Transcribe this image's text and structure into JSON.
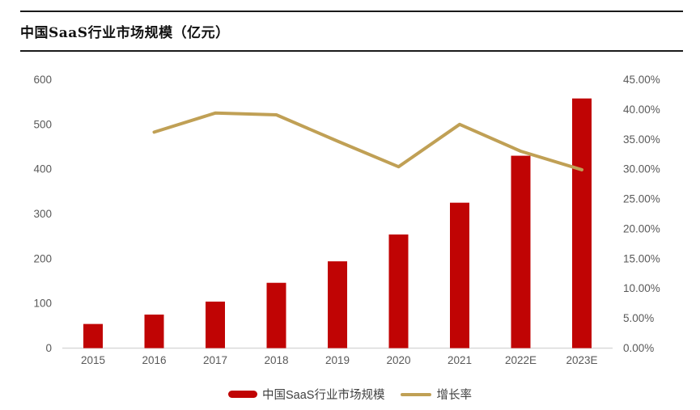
{
  "header": {
    "title": "中国SaaS行业市场规模（亿元）"
  },
  "legend": {
    "series1": "中国SaaS行业市场规模",
    "series2": "增长率"
  },
  "colors": {
    "bar": "#C00404",
    "line": "#C0A055",
    "axis_text": "#595959",
    "axis_line": "#D9D9D9",
    "rule": "#1A1A1A",
    "title_text": "#111111",
    "legend_text": "#3F3F3F"
  },
  "chart_data": {
    "type": "bar+line combo",
    "title": "中国SaaS行业市场规模（亿元）",
    "categories": [
      "2015",
      "2016",
      "2017",
      "2018",
      "2019",
      "2020",
      "2021",
      "2022E",
      "2023E"
    ],
    "series": [
      {
        "name": "中国SaaS行业市场规模",
        "type": "bar",
        "axis": "left",
        "values": [
          54,
          75,
          104,
          146,
          194,
          254,
          325,
          430,
          558
        ]
      },
      {
        "name": "增长率",
        "type": "line",
        "axis": "right",
        "values": [
          null,
          36.2,
          39.4,
          39.1,
          34.7,
          30.4,
          37.5,
          33.0,
          29.9
        ]
      }
    ],
    "left_axis": {
      "min": 0,
      "max": 600,
      "tick_labels": [
        "0",
        "100",
        "200",
        "300",
        "400",
        "500",
        "600"
      ]
    },
    "right_axis": {
      "min": 0,
      "max": 45,
      "tick_labels": [
        "0.00%",
        "5.00%",
        "10.00%",
        "15.00%",
        "20.00%",
        "25.00%",
        "30.00%",
        "35.00%",
        "40.00%",
        "45.00%"
      ]
    },
    "grid": false,
    "legend_position": "bottom"
  }
}
